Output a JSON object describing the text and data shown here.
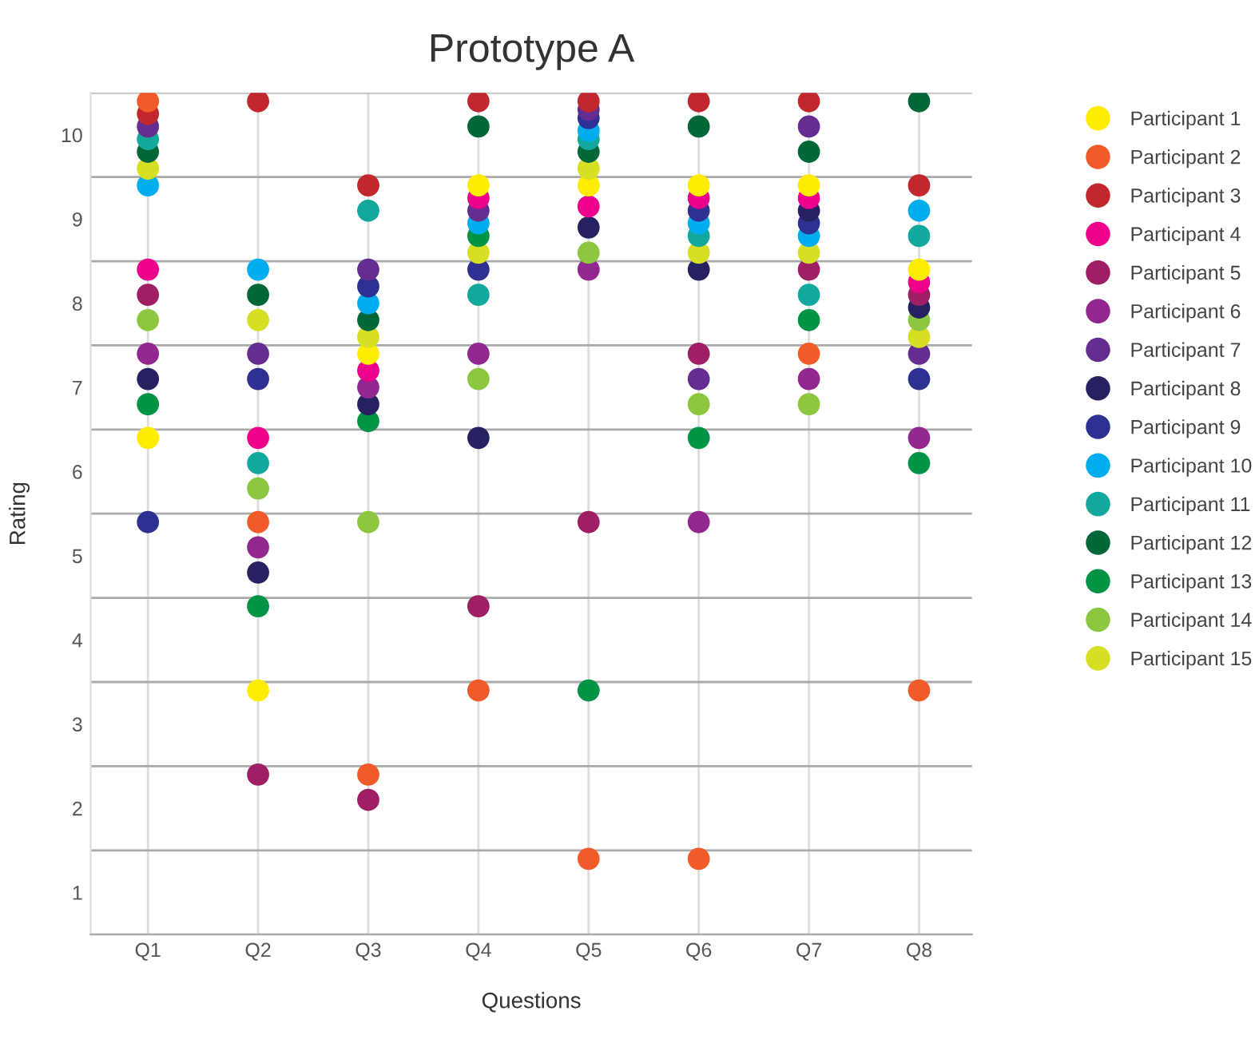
{
  "chart_data": {
    "type": "scatter",
    "title": "Prototype A",
    "xlabel": "Questions",
    "ylabel": "Rating",
    "categories": [
      "Q1",
      "Q2",
      "Q3",
      "Q4",
      "Q5",
      "Q6",
      "Q7",
      "Q8"
    ],
    "ylim": [
      0.5,
      10.5
    ],
    "yticks": [
      {
        "value": 0.5,
        "label": null
      },
      1,
      {
        "value": 1.5,
        "label": null
      },
      2,
      {
        "value": 2.5,
        "label": null
      },
      3,
      {
        "value": 3.5,
        "label": null
      },
      4,
      {
        "value": 4.5,
        "label": null
      },
      5,
      {
        "value": 5.5,
        "label": null
      },
      6,
      {
        "value": 6.5,
        "label": null
      },
      7,
      {
        "value": 7.5,
        "label": null
      },
      8,
      {
        "value": 8.5,
        "label": null
      },
      9,
      {
        "value": 9.5,
        "label": null
      },
      10,
      {
        "value": 10.5,
        "label": null
      }
    ],
    "grid": true,
    "legend": "right",
    "marker": "circle",
    "series": [
      {
        "name": "Participant 1",
        "color": "#ffed00",
        "values": [
          6.4,
          3.4,
          7.4,
          9.4,
          9.4,
          9.4,
          9.4,
          8.4
        ]
      },
      {
        "name": "Participant 2",
        "color": "#f15a29",
        "values": [
          10.4,
          5.4,
          2.4,
          3.4,
          1.4,
          1.4,
          7.4,
          3.4
        ]
      },
      {
        "name": "Participant 3",
        "color": "#c1272d",
        "values": [
          10.25,
          10.4,
          9.4,
          10.4,
          10.4,
          10.4,
          10.4,
          9.4
        ]
      },
      {
        "name": "Participant 4",
        "color": "#ec008c",
        "values": [
          8.4,
          6.4,
          7.2,
          9.25,
          9.15,
          9.25,
          9.25,
          8.25
        ]
      },
      {
        "name": "Participant 5",
        "color": "#9e1f63",
        "values": [
          8.1,
          2.4,
          2.1,
          4.4,
          5.4,
          7.4,
          8.4,
          8.1
        ]
      },
      {
        "name": "Participant 6",
        "color": "#92278f",
        "values": [
          7.4,
          5.1,
          7.0,
          7.4,
          8.4,
          5.4,
          7.1,
          6.4
        ]
      },
      {
        "name": "Participant 7",
        "color": "#662d91",
        "values": [
          10.1,
          7.4,
          8.4,
          9.1,
          10.3,
          7.1,
          10.1,
          7.4
        ]
      },
      {
        "name": "Participant 8",
        "color": "#262262",
        "values": [
          7.1,
          4.8,
          6.8,
          6.4,
          8.9,
          8.4,
          9.1,
          7.95
        ]
      },
      {
        "name": "Participant 9",
        "color": "#2e3192",
        "values": [
          5.4,
          7.1,
          8.2,
          8.4,
          10.2,
          9.1,
          8.95,
          7.1
        ]
      },
      {
        "name": "Participant 10",
        "color": "#00aeef",
        "values": [
          9.4,
          8.4,
          8.0,
          8.95,
          10.05,
          8.95,
          8.8,
          9.1
        ]
      },
      {
        "name": "Participant 11",
        "color": "#13a89e",
        "values": [
          9.95,
          6.1,
          9.1,
          8.1,
          9.95,
          8.8,
          8.1,
          8.8
        ]
      },
      {
        "name": "Participant 12",
        "color": "#006838",
        "values": [
          9.8,
          8.1,
          7.8,
          10.1,
          9.8,
          10.1,
          9.8,
          10.4
        ]
      },
      {
        "name": "Participant 13",
        "color": "#009444",
        "values": [
          6.8,
          4.4,
          6.6,
          8.8,
          3.4,
          6.4,
          7.8,
          6.1
        ]
      },
      {
        "name": "Participant 14",
        "color": "#8dc63f",
        "values": [
          7.8,
          5.8,
          5.4,
          7.1,
          8.6,
          6.8,
          6.8,
          7.8
        ]
      },
      {
        "name": "Participant 15",
        "color": "#d7df23",
        "values": [
          9.6,
          7.8,
          7.6,
          8.6,
          9.6,
          8.6,
          8.6,
          7.6
        ]
      }
    ]
  }
}
